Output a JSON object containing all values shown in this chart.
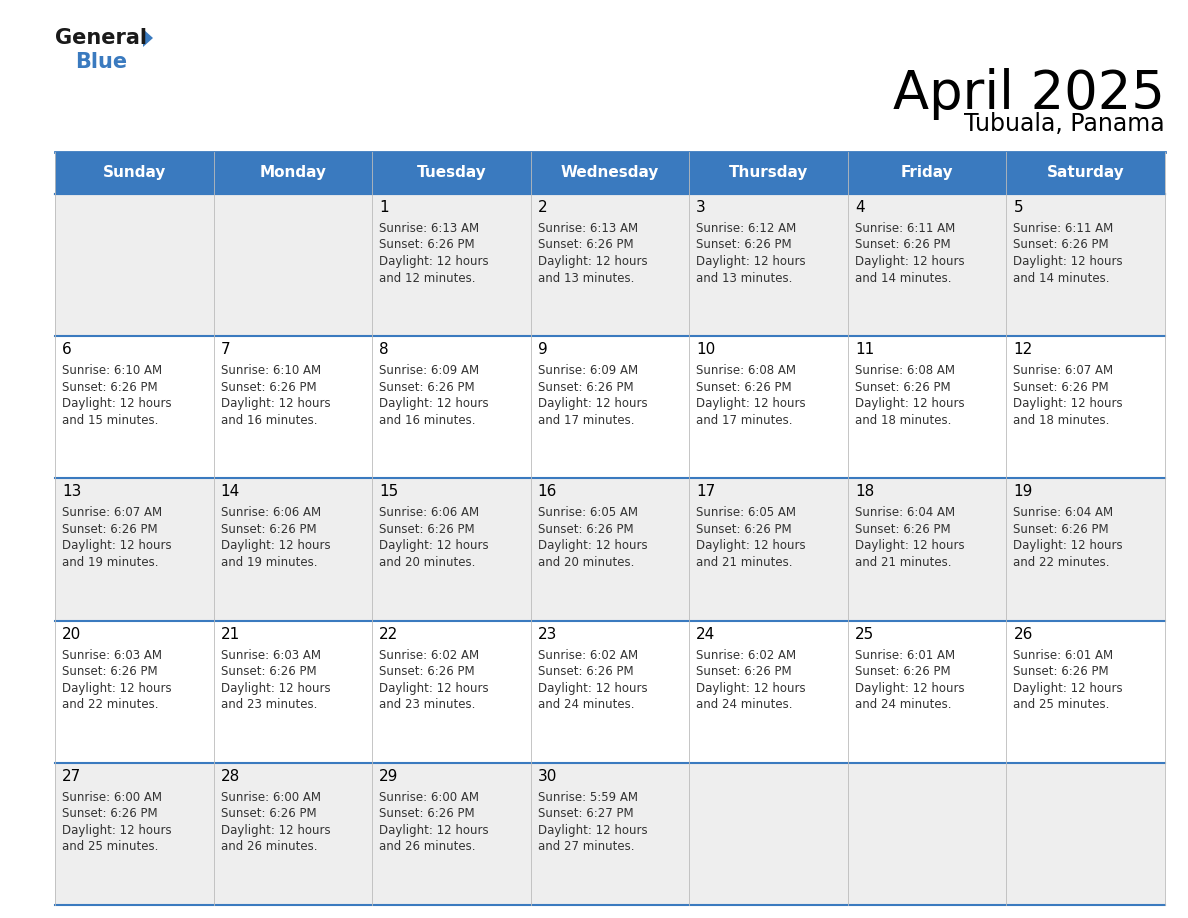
{
  "title": "April 2025",
  "subtitle": "Tubuala, Panama",
  "header_color": "#3a7abf",
  "header_text_color": "#ffffff",
  "cell_bg_even": "#eeeeee",
  "cell_bg_odd": "#ffffff",
  "border_color": "#3a7abf",
  "text_color": "#222222",
  "info_color": "#333333",
  "day_names": [
    "Sunday",
    "Monday",
    "Tuesday",
    "Wednesday",
    "Thursday",
    "Friday",
    "Saturday"
  ],
  "weeks": [
    [
      {
        "day": null,
        "sunrise": null,
        "sunset": null,
        "daylight_hours": null,
        "daylight_minutes": null
      },
      {
        "day": null,
        "sunrise": null,
        "sunset": null,
        "daylight_hours": null,
        "daylight_minutes": null
      },
      {
        "day": 1,
        "sunrise": "6:13 AM",
        "sunset": "6:26 PM",
        "daylight_hours": 12,
        "daylight_minutes": 12
      },
      {
        "day": 2,
        "sunrise": "6:13 AM",
        "sunset": "6:26 PM",
        "daylight_hours": 12,
        "daylight_minutes": 13
      },
      {
        "day": 3,
        "sunrise": "6:12 AM",
        "sunset": "6:26 PM",
        "daylight_hours": 12,
        "daylight_minutes": 13
      },
      {
        "day": 4,
        "sunrise": "6:11 AM",
        "sunset": "6:26 PM",
        "daylight_hours": 12,
        "daylight_minutes": 14
      },
      {
        "day": 5,
        "sunrise": "6:11 AM",
        "sunset": "6:26 PM",
        "daylight_hours": 12,
        "daylight_minutes": 14
      }
    ],
    [
      {
        "day": 6,
        "sunrise": "6:10 AM",
        "sunset": "6:26 PM",
        "daylight_hours": 12,
        "daylight_minutes": 15
      },
      {
        "day": 7,
        "sunrise": "6:10 AM",
        "sunset": "6:26 PM",
        "daylight_hours": 12,
        "daylight_minutes": 16
      },
      {
        "day": 8,
        "sunrise": "6:09 AM",
        "sunset": "6:26 PM",
        "daylight_hours": 12,
        "daylight_minutes": 16
      },
      {
        "day": 9,
        "sunrise": "6:09 AM",
        "sunset": "6:26 PM",
        "daylight_hours": 12,
        "daylight_minutes": 17
      },
      {
        "day": 10,
        "sunrise": "6:08 AM",
        "sunset": "6:26 PM",
        "daylight_hours": 12,
        "daylight_minutes": 17
      },
      {
        "day": 11,
        "sunrise": "6:08 AM",
        "sunset": "6:26 PM",
        "daylight_hours": 12,
        "daylight_minutes": 18
      },
      {
        "day": 12,
        "sunrise": "6:07 AM",
        "sunset": "6:26 PM",
        "daylight_hours": 12,
        "daylight_minutes": 18
      }
    ],
    [
      {
        "day": 13,
        "sunrise": "6:07 AM",
        "sunset": "6:26 PM",
        "daylight_hours": 12,
        "daylight_minutes": 19
      },
      {
        "day": 14,
        "sunrise": "6:06 AM",
        "sunset": "6:26 PM",
        "daylight_hours": 12,
        "daylight_minutes": 19
      },
      {
        "day": 15,
        "sunrise": "6:06 AM",
        "sunset": "6:26 PM",
        "daylight_hours": 12,
        "daylight_minutes": 20
      },
      {
        "day": 16,
        "sunrise": "6:05 AM",
        "sunset": "6:26 PM",
        "daylight_hours": 12,
        "daylight_minutes": 20
      },
      {
        "day": 17,
        "sunrise": "6:05 AM",
        "sunset": "6:26 PM",
        "daylight_hours": 12,
        "daylight_minutes": 21
      },
      {
        "day": 18,
        "sunrise": "6:04 AM",
        "sunset": "6:26 PM",
        "daylight_hours": 12,
        "daylight_minutes": 21
      },
      {
        "day": 19,
        "sunrise": "6:04 AM",
        "sunset": "6:26 PM",
        "daylight_hours": 12,
        "daylight_minutes": 22
      }
    ],
    [
      {
        "day": 20,
        "sunrise": "6:03 AM",
        "sunset": "6:26 PM",
        "daylight_hours": 12,
        "daylight_minutes": 22
      },
      {
        "day": 21,
        "sunrise": "6:03 AM",
        "sunset": "6:26 PM",
        "daylight_hours": 12,
        "daylight_minutes": 23
      },
      {
        "day": 22,
        "sunrise": "6:02 AM",
        "sunset": "6:26 PM",
        "daylight_hours": 12,
        "daylight_minutes": 23
      },
      {
        "day": 23,
        "sunrise": "6:02 AM",
        "sunset": "6:26 PM",
        "daylight_hours": 12,
        "daylight_minutes": 24
      },
      {
        "day": 24,
        "sunrise": "6:02 AM",
        "sunset": "6:26 PM",
        "daylight_hours": 12,
        "daylight_minutes": 24
      },
      {
        "day": 25,
        "sunrise": "6:01 AM",
        "sunset": "6:26 PM",
        "daylight_hours": 12,
        "daylight_minutes": 24
      },
      {
        "day": 26,
        "sunrise": "6:01 AM",
        "sunset": "6:26 PM",
        "daylight_hours": 12,
        "daylight_minutes": 25
      }
    ],
    [
      {
        "day": 27,
        "sunrise": "6:00 AM",
        "sunset": "6:26 PM",
        "daylight_hours": 12,
        "daylight_minutes": 25
      },
      {
        "day": 28,
        "sunrise": "6:00 AM",
        "sunset": "6:26 PM",
        "daylight_hours": 12,
        "daylight_minutes": 26
      },
      {
        "day": 29,
        "sunrise": "6:00 AM",
        "sunset": "6:26 PM",
        "daylight_hours": 12,
        "daylight_minutes": 26
      },
      {
        "day": 30,
        "sunrise": "5:59 AM",
        "sunset": "6:27 PM",
        "daylight_hours": 12,
        "daylight_minutes": 27
      },
      {
        "day": null,
        "sunrise": null,
        "sunset": null,
        "daylight_hours": null,
        "daylight_minutes": null
      },
      {
        "day": null,
        "sunrise": null,
        "sunset": null,
        "daylight_hours": null,
        "daylight_minutes": null
      },
      {
        "day": null,
        "sunrise": null,
        "sunset": null,
        "daylight_hours": null,
        "daylight_minutes": null
      }
    ]
  ],
  "logo_general_color": "#1a1a1a",
  "logo_blue_color": "#3a7abf",
  "logo_arrow_color": "#3a7abf"
}
